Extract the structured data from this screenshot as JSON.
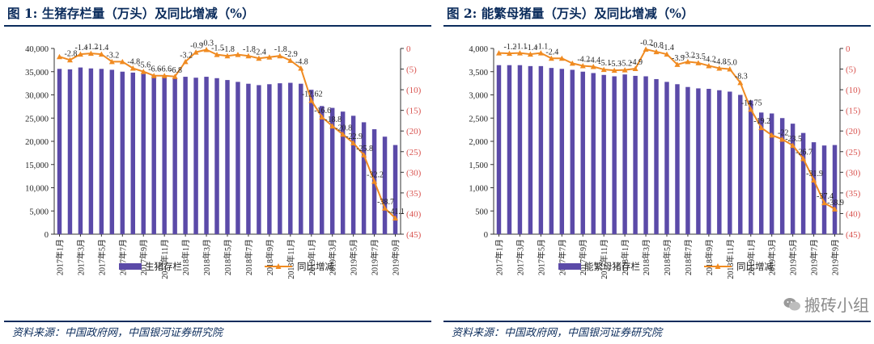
{
  "charts": [
    {
      "title": "图 1:  生猪存栏量（万头）及同比增减（%）",
      "source": "资料来源：中国政府网，中国银河证券研究院",
      "legend_bar": "生猪存栏",
      "legend_line": "同比增减"
    },
    {
      "title": "图 2:  能繁母猪量（万头）及同比增减（%）",
      "source": "资料来源：中国政府网，中国银河证券研究院",
      "legend_bar": "能繁母猪存栏",
      "legend_line": "同比增减"
    }
  ],
  "watermark": "搬砖小组",
  "colors": {
    "bar": "#5b4aa8",
    "line": "#f08b22",
    "axis_right": "#d9534f",
    "title": "#0b2c5c"
  },
  "chart_data": [
    {
      "type": "bar+line",
      "title": "生猪存栏量（万头）及同比增减（%）",
      "categories": [
        "2017年1月",
        "2017年2月",
        "2017年3月",
        "2017年4月",
        "2017年5月",
        "2017年6月",
        "2017年7月",
        "2017年8月",
        "2017年9月",
        "2017年10月",
        "2017年11月",
        "2017年12月",
        "2018年1月",
        "2018年2月",
        "2018年3月",
        "2018年4月",
        "2018年5月",
        "2018年6月",
        "2018年7月",
        "2018年8月",
        "2018年9月",
        "2018年10月",
        "2018年11月",
        "2018年12月",
        "2019年1月",
        "2019年2月",
        "2019年3月",
        "2019年4月",
        "2019年5月",
        "2019年6月",
        "2019年7月",
        "2019年8月",
        "2019年9月"
      ],
      "x_tick_labels": [
        "2017年1月",
        "2017年3月",
        "2017年5月",
        "2017年7月",
        "2017年9月",
        "2017年11月",
        "2018年1月",
        "2018年3月",
        "2018年5月",
        "2018年7月",
        "2018年9月",
        "2018年11月",
        "2019年1月",
        "2019年3月",
        "2019年5月",
        "2019年7月",
        "2019年9月"
      ],
      "series": [
        {
          "name": "生猪存栏",
          "type": "bar",
          "axis": "left",
          "values": [
            35600,
            35500,
            35900,
            35700,
            35600,
            35400,
            35000,
            34800,
            34500,
            34200,
            34000,
            33500,
            33900,
            33700,
            33900,
            33600,
            33200,
            32800,
            32400,
            32100,
            32300,
            32500,
            32600,
            32400,
            31100,
            27600,
            27200,
            26400,
            25500,
            24100,
            22600,
            21000,
            19200
          ]
        },
        {
          "name": "同比增减",
          "type": "line",
          "axis": "right",
          "values": [
            -2.0,
            -2.8,
            -1.4,
            -1.2,
            -1.4,
            -3.2,
            -3.2,
            -4.8,
            -5.6,
            -6.6,
            -6.6,
            -6.8,
            -3.2,
            -0.9,
            -0.3,
            -1.5,
            -1.8,
            -1.5,
            -1.8,
            -2.4,
            -2.1,
            -1.8,
            -2.9,
            -4.8,
            -12.62,
            -16.6,
            -18.8,
            -20.8,
            -22.9,
            -25.8,
            -32.2,
            -38.7,
            -41.1
          ],
          "labels": [
            "-2",
            "-2.8",
            "-1.4",
            "-1.2",
            "-1.4",
            "-3.2",
            "-3.2",
            "-4.8",
            "-5.6",
            "-6.6",
            "-6.6",
            "-6.8",
            "-3.2",
            "-0.9",
            "-0.3",
            "-1.5",
            "-1.8",
            "-1.5",
            "-1.8",
            "-2.4",
            "-2.1",
            "-1.8",
            "-2.9",
            "-4.8",
            "-12.62",
            "-16.6",
            "-18.8",
            "-20.8",
            "-22.9",
            "-25.8",
            "-32.2",
            "-38.7",
            "-41.1"
          ],
          "label_indices": [
            1,
            2,
            3,
            4,
            5,
            7,
            8,
            9,
            10,
            11,
            12,
            13,
            14,
            15,
            16,
            18,
            19,
            21,
            22,
            23,
            24,
            25,
            26,
            27,
            28,
            29,
            30,
            31,
            32
          ]
        }
      ],
      "y_left": {
        "min": 0,
        "max": 40000,
        "ticks": [
          "0",
          "5,000",
          "10,000",
          "15,000",
          "20,000",
          "25,000",
          "30,000",
          "35,000",
          "40,000"
        ]
      },
      "y_right": {
        "min": -45,
        "max": 0,
        "ticks": [
          "0",
          "(5)",
          "(10)",
          "(15)",
          "(20)",
          "(25)",
          "(30)",
          "(35)",
          "(40)",
          "(45)"
        ]
      }
    },
    {
      "type": "bar+line",
      "title": "能繁母猪量（万头）及同比增减（%）",
      "categories": [
        "2017年1月",
        "2017年2月",
        "2017年3月",
        "2017年4月",
        "2017年5月",
        "2017年6月",
        "2017年7月",
        "2017年8月",
        "2017年9月",
        "2017年10月",
        "2017年11月",
        "2017年12月",
        "2018年1月",
        "2018年2月",
        "2018年3月",
        "2018年4月",
        "2018年5月",
        "2018年6月",
        "2018年7月",
        "2018年8月",
        "2018年9月",
        "2018年10月",
        "2018年11月",
        "2018年12月",
        "2019年1月",
        "2019年2月",
        "2019年3月",
        "2019年4月",
        "2019年5月",
        "2019年6月",
        "2019年7月",
        "2019年8月",
        "2019年9月"
      ],
      "x_tick_labels": [
        "2017年1月",
        "2017年3月",
        "2017年5月",
        "2017年7月",
        "2017年9月",
        "2017年11月",
        "2018年1月",
        "2018年3月",
        "2018年5月",
        "2018年7月",
        "2018年9月",
        "2018年11月",
        "2019年1月",
        "2019年3月",
        "2019年5月",
        "2019年7月",
        "2019年9月"
      ],
      "series": [
        {
          "name": "能繁母猪存栏",
          "type": "bar",
          "axis": "left",
          "values": [
            3640,
            3640,
            3640,
            3620,
            3620,
            3580,
            3560,
            3540,
            3500,
            3470,
            3430,
            3400,
            3440,
            3410,
            3400,
            3340,
            3280,
            3230,
            3170,
            3140,
            3130,
            3100,
            3070,
            3000,
            2880,
            2620,
            2600,
            2500,
            2380,
            2180,
            1980,
            1910,
            1920
          ]
        },
        {
          "name": "同比增减",
          "type": "line",
          "axis": "right",
          "values": [
            -1.1,
            -1.2,
            -1.1,
            -1.4,
            -1.1,
            -2.4,
            -2.4,
            -3.6,
            -4.2,
            -4.4,
            -5.1,
            -5.3,
            -5.2,
            -4.9,
            -0.2,
            -0.8,
            -1.4,
            -3.9,
            -3.2,
            -3.5,
            -4.2,
            -4.8,
            -5.0,
            -8.3,
            -14.75,
            -19.2,
            -21.0,
            -22.0,
            -23.5,
            -26.7,
            -31.9,
            -37.4,
            -38.9
          ],
          "labels": [
            "-1.1",
            "-1.2",
            "-1.1",
            "-1.4",
            "-1.1",
            "-2.4",
            "-2.4",
            "-3.6",
            "-4.2",
            "-4.4",
            "-5.1",
            "-5.3",
            "-5.2",
            "-4.9",
            "-0.2",
            "-0.8",
            "-1.4",
            "-3.9",
            "-3.2",
            "-3.5",
            "-4.2",
            "-4.8",
            "-5.0",
            "-8.3",
            "-14.75",
            "-19.2",
            "-21",
            "-22",
            "-23.5",
            "-26.7",
            "-31.9",
            "-37.4",
            "-38.9"
          ],
          "label_indices": [
            1,
            2,
            3,
            4,
            5,
            8,
            9,
            10,
            11,
            12,
            13,
            14,
            15,
            16,
            17,
            18,
            19,
            20,
            21,
            22,
            23,
            24,
            25,
            27,
            28,
            29,
            30,
            31,
            32
          ]
        }
      ],
      "y_left": {
        "min": 0,
        "max": 4000,
        "ticks": [
          "0",
          "500",
          "1,000",
          "1,500",
          "2,000",
          "2,500",
          "3,000",
          "3,500",
          "4,000"
        ]
      },
      "y_right": {
        "min": -45,
        "max": 0,
        "ticks": [
          "0",
          "(5)",
          "(10)",
          "(15)",
          "(20)",
          "(25)",
          "(30)",
          "(35)",
          "(40)",
          "(45)"
        ]
      }
    }
  ]
}
